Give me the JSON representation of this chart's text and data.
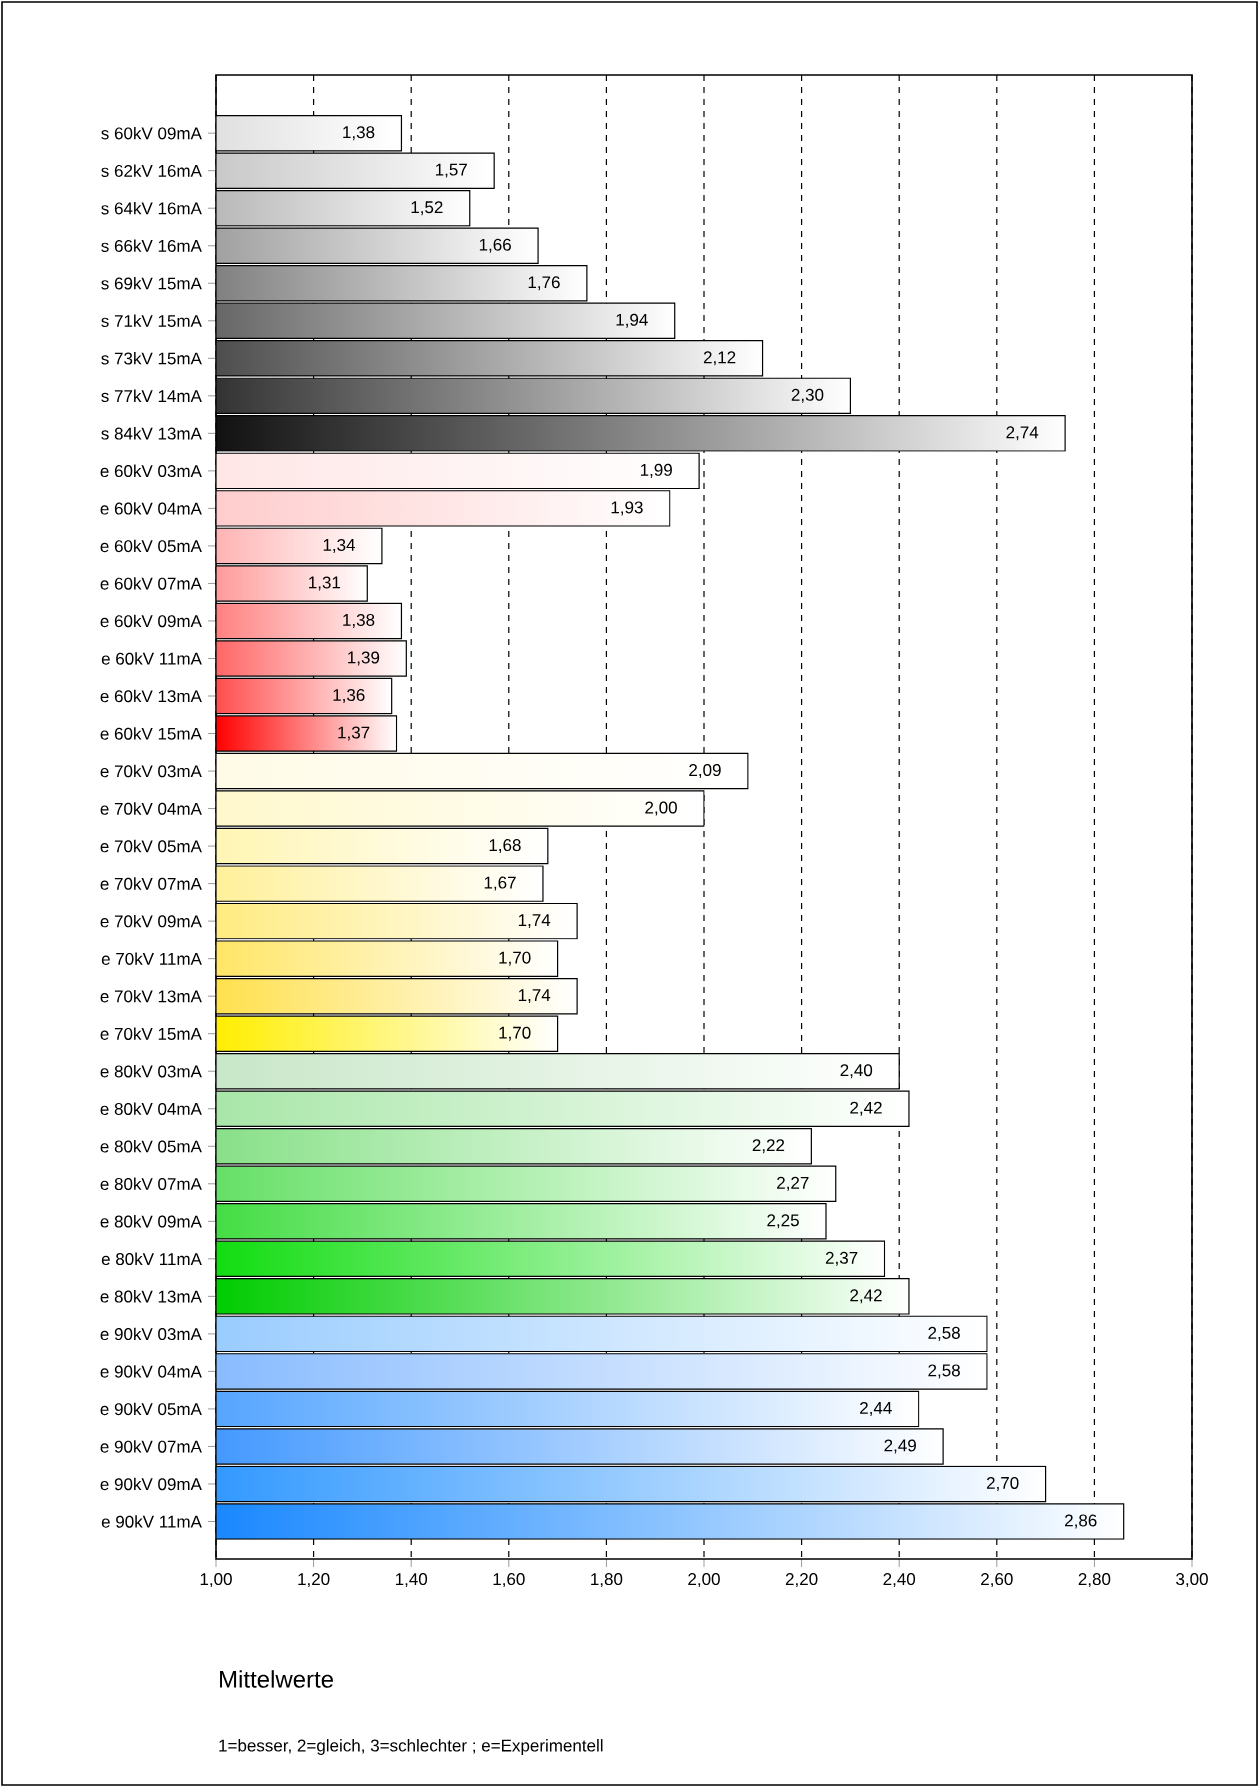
{
  "chart_data": {
    "type": "bar",
    "orientation": "horizontal",
    "title": "Mittelwerte",
    "annotations": [
      "1=besser, 2=gleich, 3=schlechter ; e=Experimentell"
    ],
    "categories": [
      "s 60kV 09mA",
      "s 62kV 16mA",
      "s 64kV 16mA",
      "s 66kV 16mA",
      "s 69kV 15mA",
      "s 71kV 15mA",
      "s 73kV 15mA",
      "s 77kV 14mA",
      "s 84kV 13mA",
      "e 60kV 03mA",
      "e 60kV 04mA",
      "e 60kV 05mA",
      "e 60kV 07mA",
      "e 60kV 09mA",
      "e 60kV 11mA",
      "e 60kV 13mA",
      "e 60kV 15mA",
      "e 70kV 03mA",
      "e 70kV 04mA",
      "e 70kV 05mA",
      "e 70kV 07mA",
      "e 70kV 09mA",
      "e 70kV 11mA",
      "e 70kV 13mA",
      "e 70kV 15mA",
      "e 80kV 03mA",
      "e 80kV 04mA",
      "e 80kV 05mA",
      "e 80kV 07mA",
      "e 80kV 09mA",
      "e 80kV 11mA",
      "e 80kV 13mA",
      "e 90kV 03mA",
      "e 90kV 04mA",
      "e 90kV 05mA",
      "e 90kV 07mA",
      "e 90kV 09mA",
      "e 90kV 11mA"
    ],
    "values": [
      1.38,
      1.57,
      1.52,
      1.66,
      1.76,
      1.94,
      2.12,
      2.3,
      2.74,
      1.99,
      1.93,
      1.34,
      1.31,
      1.38,
      1.39,
      1.36,
      1.37,
      2.09,
      2.0,
      1.68,
      1.67,
      1.74,
      1.7,
      1.74,
      1.7,
      2.4,
      2.42,
      2.22,
      2.27,
      2.25,
      2.37,
      2.42,
      2.58,
      2.58,
      2.44,
      2.49,
      2.7,
      2.86
    ],
    "value_labels": [
      "1,38",
      "1,57",
      "1,52",
      "1,66",
      "1,76",
      "1,94",
      "2,12",
      "2,30",
      "2,74",
      "1,99",
      "1,93",
      "1,34",
      "1,31",
      "1,38",
      "1,39",
      "1,36",
      "1,37",
      "2,09",
      "2,00",
      "1,68",
      "1,67",
      "1,74",
      "1,70",
      "1,74",
      "1,70",
      "2,40",
      "2,42",
      "2,22",
      "2,27",
      "2,25",
      "2,37",
      "2,42",
      "2,58",
      "2,58",
      "2,44",
      "2,49",
      "2,70",
      "2,86"
    ],
    "colors": [
      "#e0e0e0",
      "#c8c8c8",
      "#b8b8b8",
      "#a0a0a0",
      "#808080",
      "#666666",
      "#4d4d4d",
      "#333333",
      "#111111",
      "#ffe6e6",
      "#ffcccc",
      "#ffb3b3",
      "#ff9999",
      "#ff8080",
      "#ff6666",
      "#ff4d4d",
      "#ff0000",
      "#fffbe6",
      "#fff8cc",
      "#fff5b3",
      "#fff099",
      "#ffeb80",
      "#ffe666",
      "#ffe04d",
      "#ffee00",
      "#c8e6c8",
      "#a8e6a8",
      "#88e088",
      "#66e066",
      "#44dd44",
      "#11dd11",
      "#00cc00",
      "#99ccff",
      "#88bbff",
      "#55a5ff",
      "#4499ff",
      "#3399ff",
      "#1a88ff"
    ],
    "xlim": [
      1.0,
      3.0
    ],
    "xticks": [
      {
        "value": 1.0,
        "label": "1,00"
      },
      {
        "value": 1.2,
        "label": "1,20"
      },
      {
        "value": 1.4,
        "label": "1,40"
      },
      {
        "value": 1.6,
        "label": "1,60"
      },
      {
        "value": 1.8,
        "label": "1,80"
      },
      {
        "value": 2.0,
        "label": "2,00"
      },
      {
        "value": 2.2,
        "label": "2,20"
      },
      {
        "value": 2.4,
        "label": "2,40"
      },
      {
        "value": 2.6,
        "label": "2,60"
      },
      {
        "value": 2.8,
        "label": "2,80"
      },
      {
        "value": 3.0,
        "label": "3,00"
      }
    ],
    "grid": "x"
  }
}
